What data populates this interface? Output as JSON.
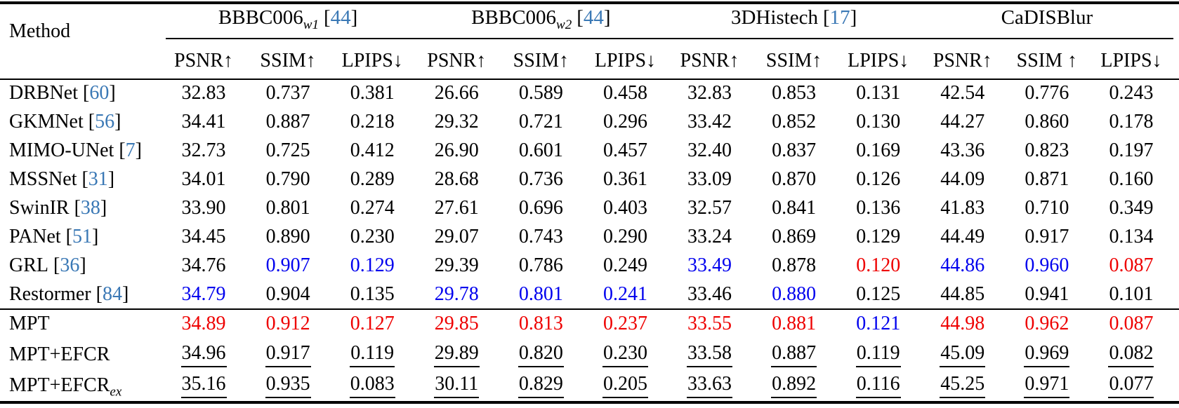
{
  "table": {
    "method_header": "Method",
    "groups": [
      {
        "name": "BBBC006",
        "sub": "w1",
        "cite": "44"
      },
      {
        "name": "BBBC006",
        "sub": "w2",
        "cite": "44"
      },
      {
        "name": "3DHistech",
        "sub": "",
        "cite": "17"
      },
      {
        "name": "CaDISBlur",
        "sub": "",
        "cite": ""
      }
    ],
    "metric_headers": [
      "PSNR↑",
      "SSIM↑",
      "LPIPS↓",
      "PSNR↑",
      "SSIM↑",
      "LPIPS↓",
      "PSNR↑",
      "SSIM↑",
      "LPIPS↓",
      "PSNR↑",
      "SSIM ↑",
      "LPIPS↓"
    ],
    "style_legend": {
      "n": "normal black",
      "b": "blue highlight",
      "r": "red highlight",
      "u": "black underlined"
    },
    "colors": {
      "citation_blue": "#3a78b5",
      "value_blue": "#0000ee",
      "value_red": "#ee0000",
      "text": "#000000",
      "background": "#ffffff"
    },
    "rows": [
      {
        "method": {
          "name": "DRBNet",
          "sub": "",
          "cite": "60"
        },
        "cells": [
          {
            "v": "32.83",
            "s": "n"
          },
          {
            "v": "0.737",
            "s": "n"
          },
          {
            "v": "0.381",
            "s": "n"
          },
          {
            "v": "26.66",
            "s": "n"
          },
          {
            "v": "0.589",
            "s": "n"
          },
          {
            "v": "0.458",
            "s": "n"
          },
          {
            "v": "32.83",
            "s": "n"
          },
          {
            "v": "0.853",
            "s": "n"
          },
          {
            "v": "0.131",
            "s": "n"
          },
          {
            "v": "42.54",
            "s": "n"
          },
          {
            "v": "0.776",
            "s": "n"
          },
          {
            "v": "0.243",
            "s": "n"
          }
        ]
      },
      {
        "method": {
          "name": "GKMNet",
          "sub": "",
          "cite": "56"
        },
        "cells": [
          {
            "v": "34.41",
            "s": "n"
          },
          {
            "v": "0.887",
            "s": "n"
          },
          {
            "v": "0.218",
            "s": "n"
          },
          {
            "v": "29.32",
            "s": "n"
          },
          {
            "v": "0.721",
            "s": "n"
          },
          {
            "v": "0.296",
            "s": "n"
          },
          {
            "v": "33.42",
            "s": "n"
          },
          {
            "v": "0.852",
            "s": "n"
          },
          {
            "v": "0.130",
            "s": "n"
          },
          {
            "v": "44.27",
            "s": "n"
          },
          {
            "v": "0.860",
            "s": "n"
          },
          {
            "v": "0.178",
            "s": "n"
          }
        ]
      },
      {
        "method": {
          "name": "MIMO-UNet",
          "sub": "",
          "cite": "7"
        },
        "cells": [
          {
            "v": "32.73",
            "s": "n"
          },
          {
            "v": "0.725",
            "s": "n"
          },
          {
            "v": "0.412",
            "s": "n"
          },
          {
            "v": "26.90",
            "s": "n"
          },
          {
            "v": "0.601",
            "s": "n"
          },
          {
            "v": "0.457",
            "s": "n"
          },
          {
            "v": "32.40",
            "s": "n"
          },
          {
            "v": "0.837",
            "s": "n"
          },
          {
            "v": "0.169",
            "s": "n"
          },
          {
            "v": "43.36",
            "s": "n"
          },
          {
            "v": "0.823",
            "s": "n"
          },
          {
            "v": "0.197",
            "s": "n"
          }
        ]
      },
      {
        "method": {
          "name": "MSSNet",
          "sub": "",
          "cite": "31"
        },
        "cells": [
          {
            "v": "34.01",
            "s": "n"
          },
          {
            "v": "0.790",
            "s": "n"
          },
          {
            "v": "0.289",
            "s": "n"
          },
          {
            "v": "28.68",
            "s": "n"
          },
          {
            "v": "0.736",
            "s": "n"
          },
          {
            "v": "0.361",
            "s": "n"
          },
          {
            "v": "33.09",
            "s": "n"
          },
          {
            "v": "0.870",
            "s": "n"
          },
          {
            "v": "0.126",
            "s": "n"
          },
          {
            "v": "44.09",
            "s": "n"
          },
          {
            "v": "0.871",
            "s": "n"
          },
          {
            "v": "0.160",
            "s": "n"
          }
        ]
      },
      {
        "method": {
          "name": "SwinIR",
          "sub": "",
          "cite": "38"
        },
        "cells": [
          {
            "v": "33.90",
            "s": "n"
          },
          {
            "v": "0.801",
            "s": "n"
          },
          {
            "v": "0.274",
            "s": "n"
          },
          {
            "v": "27.61",
            "s": "n"
          },
          {
            "v": "0.696",
            "s": "n"
          },
          {
            "v": "0.403",
            "s": "n"
          },
          {
            "v": "32.57",
            "s": "n"
          },
          {
            "v": "0.841",
            "s": "n"
          },
          {
            "v": "0.136",
            "s": "n"
          },
          {
            "v": "41.83",
            "s": "n"
          },
          {
            "v": "0.710",
            "s": "n"
          },
          {
            "v": "0.349",
            "s": "n"
          }
        ]
      },
      {
        "method": {
          "name": "PANet",
          "sub": "",
          "cite": "51"
        },
        "cells": [
          {
            "v": "34.45",
            "s": "n"
          },
          {
            "v": "0.890",
            "s": "n"
          },
          {
            "v": "0.230",
            "s": "n"
          },
          {
            "v": "29.07",
            "s": "n"
          },
          {
            "v": "0.743",
            "s": "n"
          },
          {
            "v": "0.290",
            "s": "n"
          },
          {
            "v": "33.24",
            "s": "n"
          },
          {
            "v": "0.869",
            "s": "n"
          },
          {
            "v": "0.129",
            "s": "n"
          },
          {
            "v": "44.49",
            "s": "n"
          },
          {
            "v": "0.917",
            "s": "n"
          },
          {
            "v": "0.134",
            "s": "n"
          }
        ]
      },
      {
        "method": {
          "name": "GRL",
          "sub": "",
          "cite": "36"
        },
        "cells": [
          {
            "v": "34.76",
            "s": "n"
          },
          {
            "v": "0.907",
            "s": "b"
          },
          {
            "v": "0.129",
            "s": "b"
          },
          {
            "v": "29.39",
            "s": "n"
          },
          {
            "v": "0.786",
            "s": "n"
          },
          {
            "v": "0.249",
            "s": "n"
          },
          {
            "v": "33.49",
            "s": "b"
          },
          {
            "v": "0.878",
            "s": "n"
          },
          {
            "v": "0.120",
            "s": "r"
          },
          {
            "v": "44.86",
            "s": "b"
          },
          {
            "v": "0.960",
            "s": "b"
          },
          {
            "v": "0.087",
            "s": "r"
          }
        ]
      },
      {
        "method": {
          "name": "Restormer",
          "sub": "",
          "cite": "84"
        },
        "cells": [
          {
            "v": "34.79",
            "s": "b"
          },
          {
            "v": "0.904",
            "s": "n"
          },
          {
            "v": "0.135",
            "s": "n"
          },
          {
            "v": "29.78",
            "s": "b"
          },
          {
            "v": "0.801",
            "s": "b"
          },
          {
            "v": "0.241",
            "s": "b"
          },
          {
            "v": "33.46",
            "s": "n"
          },
          {
            "v": "0.880",
            "s": "b"
          },
          {
            "v": "0.125",
            "s": "n"
          },
          {
            "v": "44.85",
            "s": "n"
          },
          {
            "v": "0.941",
            "s": "n"
          },
          {
            "v": "0.101",
            "s": "n"
          }
        ]
      },
      {
        "method": {
          "name": "MPT",
          "sub": "",
          "cite": ""
        },
        "cells": [
          {
            "v": "34.89",
            "s": "r"
          },
          {
            "v": "0.912",
            "s": "r"
          },
          {
            "v": "0.127",
            "s": "r"
          },
          {
            "v": "29.85",
            "s": "r"
          },
          {
            "v": "0.813",
            "s": "r"
          },
          {
            "v": "0.237",
            "s": "r"
          },
          {
            "v": "33.55",
            "s": "r"
          },
          {
            "v": "0.881",
            "s": "r"
          },
          {
            "v": "0.121",
            "s": "b"
          },
          {
            "v": "44.98",
            "s": "r"
          },
          {
            "v": "0.962",
            "s": "r"
          },
          {
            "v": "0.087",
            "s": "r"
          }
        ]
      },
      {
        "method": {
          "name": "MPT+EFCR",
          "sub": "",
          "cite": ""
        },
        "cells": [
          {
            "v": "34.96",
            "s": "u"
          },
          {
            "v": "0.917",
            "s": "u"
          },
          {
            "v": "0.119",
            "s": "u"
          },
          {
            "v": "29.89",
            "s": "u"
          },
          {
            "v": "0.820",
            "s": "u"
          },
          {
            "v": "0.230",
            "s": "u"
          },
          {
            "v": "33.58",
            "s": "u"
          },
          {
            "v": "0.887",
            "s": "u"
          },
          {
            "v": "0.119",
            "s": "u"
          },
          {
            "v": "45.09",
            "s": "u"
          },
          {
            "v": "0.969",
            "s": "u"
          },
          {
            "v": "0.082",
            "s": "u"
          }
        ]
      },
      {
        "method": {
          "name": "MPT+EFCR",
          "sub": "ex",
          "cite": ""
        },
        "cells": [
          {
            "v": "35.16",
            "s": "u"
          },
          {
            "v": "0.935",
            "s": "u"
          },
          {
            "v": "0.083",
            "s": "u"
          },
          {
            "v": "30.11",
            "s": "u"
          },
          {
            "v": "0.829",
            "s": "u"
          },
          {
            "v": "0.205",
            "s": "u"
          },
          {
            "v": "33.63",
            "s": "u"
          },
          {
            "v": "0.892",
            "s": "u"
          },
          {
            "v": "0.116",
            "s": "u"
          },
          {
            "v": "45.25",
            "s": "u"
          },
          {
            "v": "0.971",
            "s": "u"
          },
          {
            "v": "0.077",
            "s": "u"
          }
        ]
      }
    ]
  }
}
